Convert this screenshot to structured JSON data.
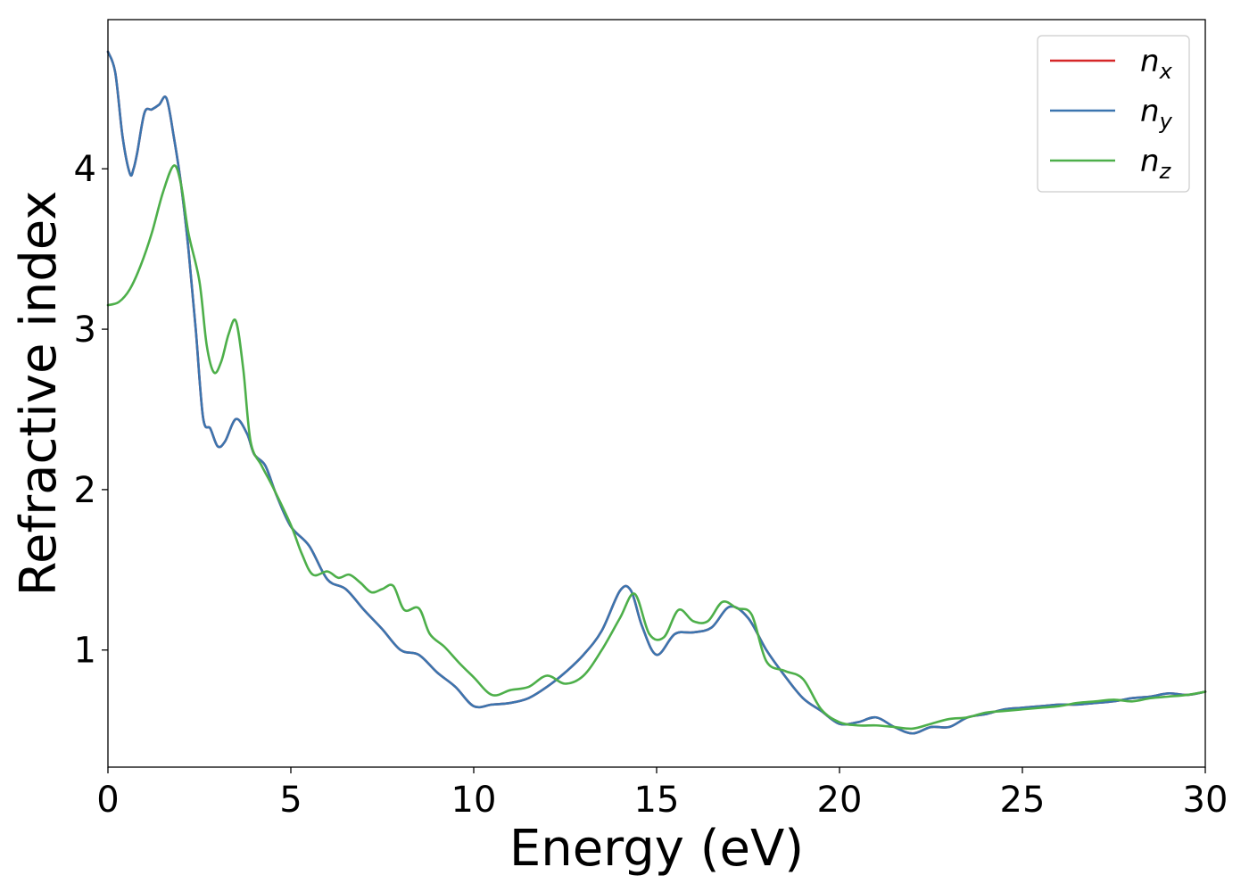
{
  "chart_data": {
    "type": "line",
    "title": "",
    "xlabel": "Energy (eV)",
    "ylabel": "Refractive index",
    "xlim": [
      0,
      30
    ],
    "ylim": [
      0.27,
      4.93
    ],
    "xticks": [
      0,
      5,
      10,
      15,
      20,
      25,
      30
    ],
    "yticks": [
      1,
      2,
      3,
      4
    ],
    "grid": false,
    "legend_position": "top-right",
    "colors": {
      "n_x": "#d62728",
      "n_y": "#3b75af",
      "n_z": "#4daf4a"
    },
    "legend": [
      {
        "key": "n_x",
        "base": "n",
        "sub": "x"
      },
      {
        "key": "n_y",
        "base": "n",
        "sub": "y"
      },
      {
        "key": "n_z",
        "base": "n",
        "sub": "z"
      }
    ],
    "series": [
      {
        "name": "n_x",
        "x": [
          0,
          0.2,
          0.4,
          0.6,
          0.7,
          0.8,
          1.0,
          1.2,
          1.4,
          1.6,
          1.8,
          2.0,
          2.2,
          2.4,
          2.6,
          2.8,
          3.0,
          3.2,
          3.5,
          3.8,
          4.0,
          4.3,
          4.6,
          5.0,
          5.5,
          6.0,
          6.5,
          7.0,
          7.5,
          8.0,
          8.5,
          9.0,
          9.5,
          10.0,
          10.5,
          11.0,
          11.5,
          12.0,
          12.5,
          13.0,
          13.5,
          14.0,
          14.3,
          14.6,
          15.0,
          15.5,
          16.0,
          16.5,
          17.0,
          17.5,
          18.0,
          18.5,
          19.0,
          19.5,
          20.0,
          20.5,
          21.0,
          21.5,
          22.0,
          22.5,
          23.0,
          23.5,
          24.0,
          24.5,
          25.0,
          25.5,
          26.0,
          26.5,
          27.0,
          27.5,
          28.0,
          28.5,
          29.0,
          29.5,
          30.0
        ],
        "y": [
          4.73,
          4.6,
          4.2,
          3.97,
          4.0,
          4.1,
          4.35,
          4.37,
          4.4,
          4.44,
          4.2,
          3.9,
          3.5,
          3.0,
          2.45,
          2.38,
          2.27,
          2.3,
          2.44,
          2.35,
          2.22,
          2.15,
          1.97,
          1.77,
          1.65,
          1.44,
          1.38,
          1.25,
          1.13,
          1.0,
          0.97,
          0.86,
          0.77,
          0.65,
          0.66,
          0.67,
          0.7,
          0.77,
          0.86,
          0.97,
          1.12,
          1.37,
          1.37,
          1.15,
          0.97,
          1.1,
          1.11,
          1.14,
          1.27,
          1.2,
          1.0,
          0.84,
          0.7,
          0.62,
          0.54,
          0.55,
          0.58,
          0.52,
          0.48,
          0.52,
          0.52,
          0.58,
          0.6,
          0.63,
          0.64,
          0.65,
          0.66,
          0.66,
          0.67,
          0.68,
          0.7,
          0.71,
          0.73,
          0.72,
          0.74
        ]
      },
      {
        "name": "n_y",
        "x": [
          0,
          0.2,
          0.4,
          0.6,
          0.7,
          0.8,
          1.0,
          1.2,
          1.4,
          1.6,
          1.8,
          2.0,
          2.2,
          2.4,
          2.6,
          2.8,
          3.0,
          3.2,
          3.5,
          3.8,
          4.0,
          4.3,
          4.6,
          5.0,
          5.5,
          6.0,
          6.5,
          7.0,
          7.5,
          8.0,
          8.5,
          9.0,
          9.5,
          10.0,
          10.5,
          11.0,
          11.5,
          12.0,
          12.5,
          13.0,
          13.5,
          14.0,
          14.3,
          14.6,
          15.0,
          15.5,
          16.0,
          16.5,
          17.0,
          17.5,
          18.0,
          18.5,
          19.0,
          19.5,
          20.0,
          20.5,
          21.0,
          21.5,
          22.0,
          22.5,
          23.0,
          23.5,
          24.0,
          24.5,
          25.0,
          25.5,
          26.0,
          26.5,
          27.0,
          27.5,
          28.0,
          28.5,
          29.0,
          29.5,
          30.0
        ],
        "y": [
          4.73,
          4.6,
          4.2,
          3.97,
          4.0,
          4.1,
          4.35,
          4.37,
          4.4,
          4.44,
          4.2,
          3.9,
          3.5,
          3.0,
          2.45,
          2.38,
          2.27,
          2.3,
          2.44,
          2.35,
          2.22,
          2.15,
          1.97,
          1.77,
          1.65,
          1.44,
          1.38,
          1.25,
          1.13,
          1.0,
          0.97,
          0.86,
          0.77,
          0.65,
          0.66,
          0.67,
          0.7,
          0.77,
          0.86,
          0.97,
          1.12,
          1.37,
          1.37,
          1.15,
          0.97,
          1.1,
          1.11,
          1.14,
          1.27,
          1.2,
          1.0,
          0.84,
          0.7,
          0.62,
          0.54,
          0.55,
          0.58,
          0.52,
          0.48,
          0.52,
          0.52,
          0.58,
          0.6,
          0.63,
          0.64,
          0.65,
          0.66,
          0.66,
          0.67,
          0.68,
          0.7,
          0.71,
          0.73,
          0.72,
          0.74
        ]
      },
      {
        "name": "n_z",
        "x": [
          0,
          0.3,
          0.6,
          0.9,
          1.2,
          1.5,
          1.8,
          2.0,
          2.2,
          2.5,
          2.7,
          2.9,
          3.1,
          3.3,
          3.5,
          3.7,
          3.9,
          4.2,
          4.5,
          5.0,
          5.3,
          5.6,
          6.0,
          6.3,
          6.6,
          6.9,
          7.2,
          7.5,
          7.8,
          8.1,
          8.5,
          8.8,
          9.2,
          9.6,
          10.0,
          10.5,
          11.0,
          11.5,
          12.0,
          12.5,
          13.0,
          13.5,
          14.0,
          14.4,
          14.8,
          15.2,
          15.6,
          16.0,
          16.4,
          16.8,
          17.2,
          17.6,
          18.0,
          18.5,
          19.0,
          19.5,
          20.0,
          20.5,
          21.0,
          21.5,
          22.0,
          22.5,
          23.0,
          23.5,
          24.0,
          24.5,
          25.0,
          25.5,
          26.0,
          26.5,
          27.0,
          27.5,
          28.0,
          28.5,
          29.0,
          29.5,
          30.0
        ],
        "y": [
          3.15,
          3.17,
          3.25,
          3.4,
          3.6,
          3.85,
          4.02,
          3.9,
          3.6,
          3.3,
          2.9,
          2.73,
          2.8,
          2.97,
          3.05,
          2.75,
          2.3,
          2.15,
          2.02,
          1.78,
          1.6,
          1.47,
          1.49,
          1.45,
          1.47,
          1.42,
          1.36,
          1.38,
          1.4,
          1.25,
          1.26,
          1.1,
          1.02,
          0.92,
          0.83,
          0.72,
          0.75,
          0.77,
          0.84,
          0.79,
          0.84,
          1.0,
          1.2,
          1.35,
          1.1,
          1.08,
          1.25,
          1.18,
          1.18,
          1.3,
          1.26,
          1.22,
          0.93,
          0.87,
          0.82,
          0.63,
          0.55,
          0.53,
          0.53,
          0.52,
          0.51,
          0.54,
          0.57,
          0.58,
          0.61,
          0.62,
          0.63,
          0.64,
          0.65,
          0.67,
          0.68,
          0.69,
          0.68,
          0.7,
          0.71,
          0.72,
          0.74
        ]
      }
    ]
  }
}
